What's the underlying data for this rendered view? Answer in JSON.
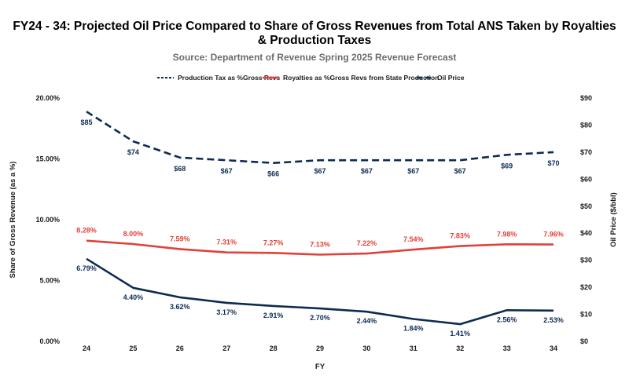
{
  "chart_data": {
    "type": "line",
    "title_lines": [
      "FY24 - 34: Projected Oil Price Compared to Share of Gross Revenues from Total ANS Taken by Royalties",
      "& Production Taxes"
    ],
    "subtitle": "Source: Department of Revenue Spring 2025 Revenue Forecast",
    "xlabel": "FY",
    "ylabel_left": "Share of Gross Revenue (as a %)",
    "ylabel_right": "Oil Price ($/bbl)",
    "categories": [
      "24",
      "25",
      "26",
      "27",
      "28",
      "29",
      "30",
      "31",
      "32",
      "33",
      "34"
    ],
    "ylim_left": [
      0,
      20
    ],
    "yticks_left": [
      "0.00%",
      "5.00%",
      "10.00%",
      "15.00%",
      "20.00%"
    ],
    "ylim_right": [
      0,
      90
    ],
    "yticks_right": [
      "$0",
      "$10",
      "$20",
      "$30",
      "$40",
      "$50",
      "$60",
      "$70",
      "$80",
      "$90"
    ],
    "grid": false,
    "legend_position": "top",
    "series": [
      {
        "name": "Production Tax as %Gross Revs",
        "axis": "left",
        "style": "solid",
        "color": "#0d2b52",
        "values": [
          6.79,
          4.4,
          3.62,
          3.17,
          2.91,
          2.7,
          2.44,
          1.84,
          1.41,
          2.56,
          2.53
        ],
        "labels": [
          "6.79%",
          "4.40%",
          "3.62%",
          "3.17%",
          "2.91%",
          "2.70%",
          "2.44%",
          "1.84%",
          "1.41%",
          "2.56%",
          "2.53%"
        ]
      },
      {
        "name": "Royalties as %Gross Revs from State Production",
        "axis": "left",
        "style": "solid",
        "color": "#e0413a",
        "values": [
          8.28,
          8.0,
          7.59,
          7.31,
          7.27,
          7.13,
          7.22,
          7.54,
          7.83,
          7.98,
          7.96
        ],
        "labels": [
          "8.28%",
          "8.00%",
          "7.59%",
          "7.31%",
          "7.27%",
          "7.13%",
          "7.22%",
          "7.54%",
          "7.83%",
          "7.98%",
          "7.96%"
        ]
      },
      {
        "name": "Oil Price",
        "axis": "right",
        "style": "dashed",
        "color": "#0d2b52",
        "values": [
          85,
          74,
          68,
          67,
          66,
          67,
          67,
          67,
          67,
          69,
          70
        ],
        "labels": [
          "$85",
          "$74",
          "$68",
          "$67",
          "$66",
          "$67",
          "$67",
          "$67",
          "$67",
          "$69",
          "$70"
        ]
      }
    ]
  }
}
